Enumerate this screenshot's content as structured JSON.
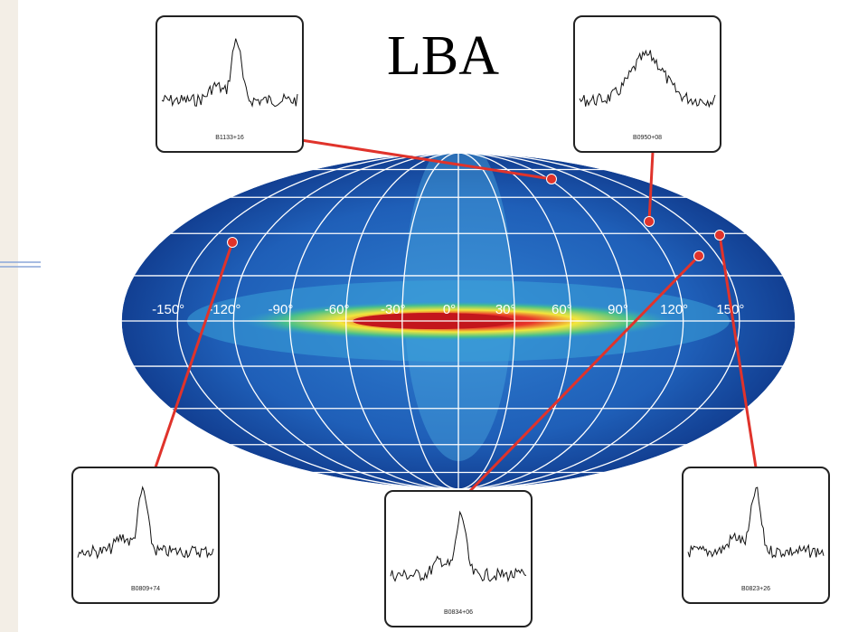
{
  "title": "LBA",
  "longitude_labels": [
    "-150°",
    "-120°",
    "-90°",
    "-60°",
    "-30°",
    "0°",
    "30°",
    "60°",
    "90°",
    "120°",
    "150°"
  ],
  "panels": [
    {
      "label": "B1133+16"
    },
    {
      "label": "B0950+08"
    },
    {
      "label": "B0809+74"
    },
    {
      "label": "B0834+06"
    },
    {
      "label": "B0823+26"
    }
  ]
}
